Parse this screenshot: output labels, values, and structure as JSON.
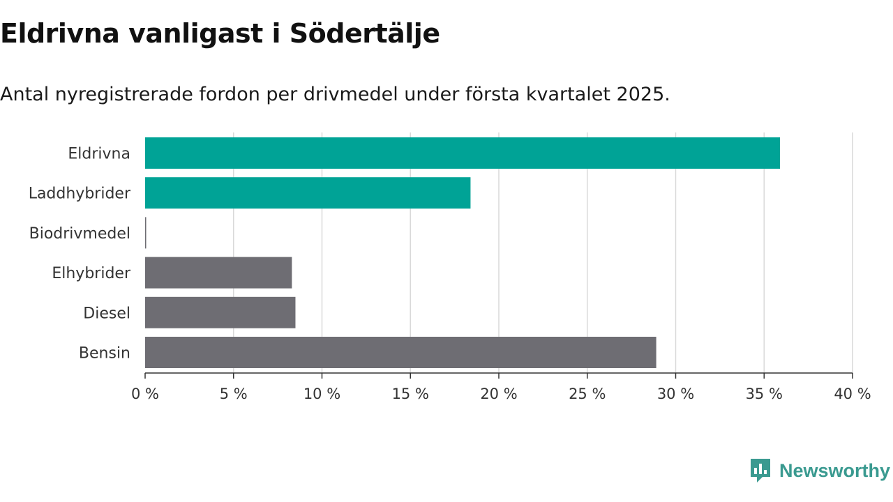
{
  "title": "Eldrivna vanligast i Södertälje",
  "subtitle": "Antal nyregistrerade fordon per drivmedel under första kvartalet 2025.",
  "brand": {
    "name": "Newsworthy",
    "icon": "newsworthy-logo-icon",
    "color": "#3a9a90"
  },
  "chart_data": {
    "type": "bar",
    "orientation": "horizontal",
    "categories": [
      "Eldrivna",
      "Laddhybrider",
      "Biodrivmedel",
      "Elhybrider",
      "Diesel",
      "Bensin"
    ],
    "values": [
      35.9,
      18.4,
      0.05,
      8.3,
      8.5,
      28.9
    ],
    "colors": [
      "#00a396",
      "#00a396",
      "#6e6d73",
      "#6e6d73",
      "#6e6d73",
      "#6e6d73"
    ],
    "xlim": [
      0,
      40
    ],
    "xticks": [
      0,
      5,
      10,
      15,
      20,
      25,
      30,
      35,
      40
    ],
    "tick_labels": [
      "0 %",
      "5 %",
      "10 %",
      "15 %",
      "20 %",
      "25 %",
      "30 %",
      "35 %",
      "40 %"
    ],
    "grid": true
  }
}
